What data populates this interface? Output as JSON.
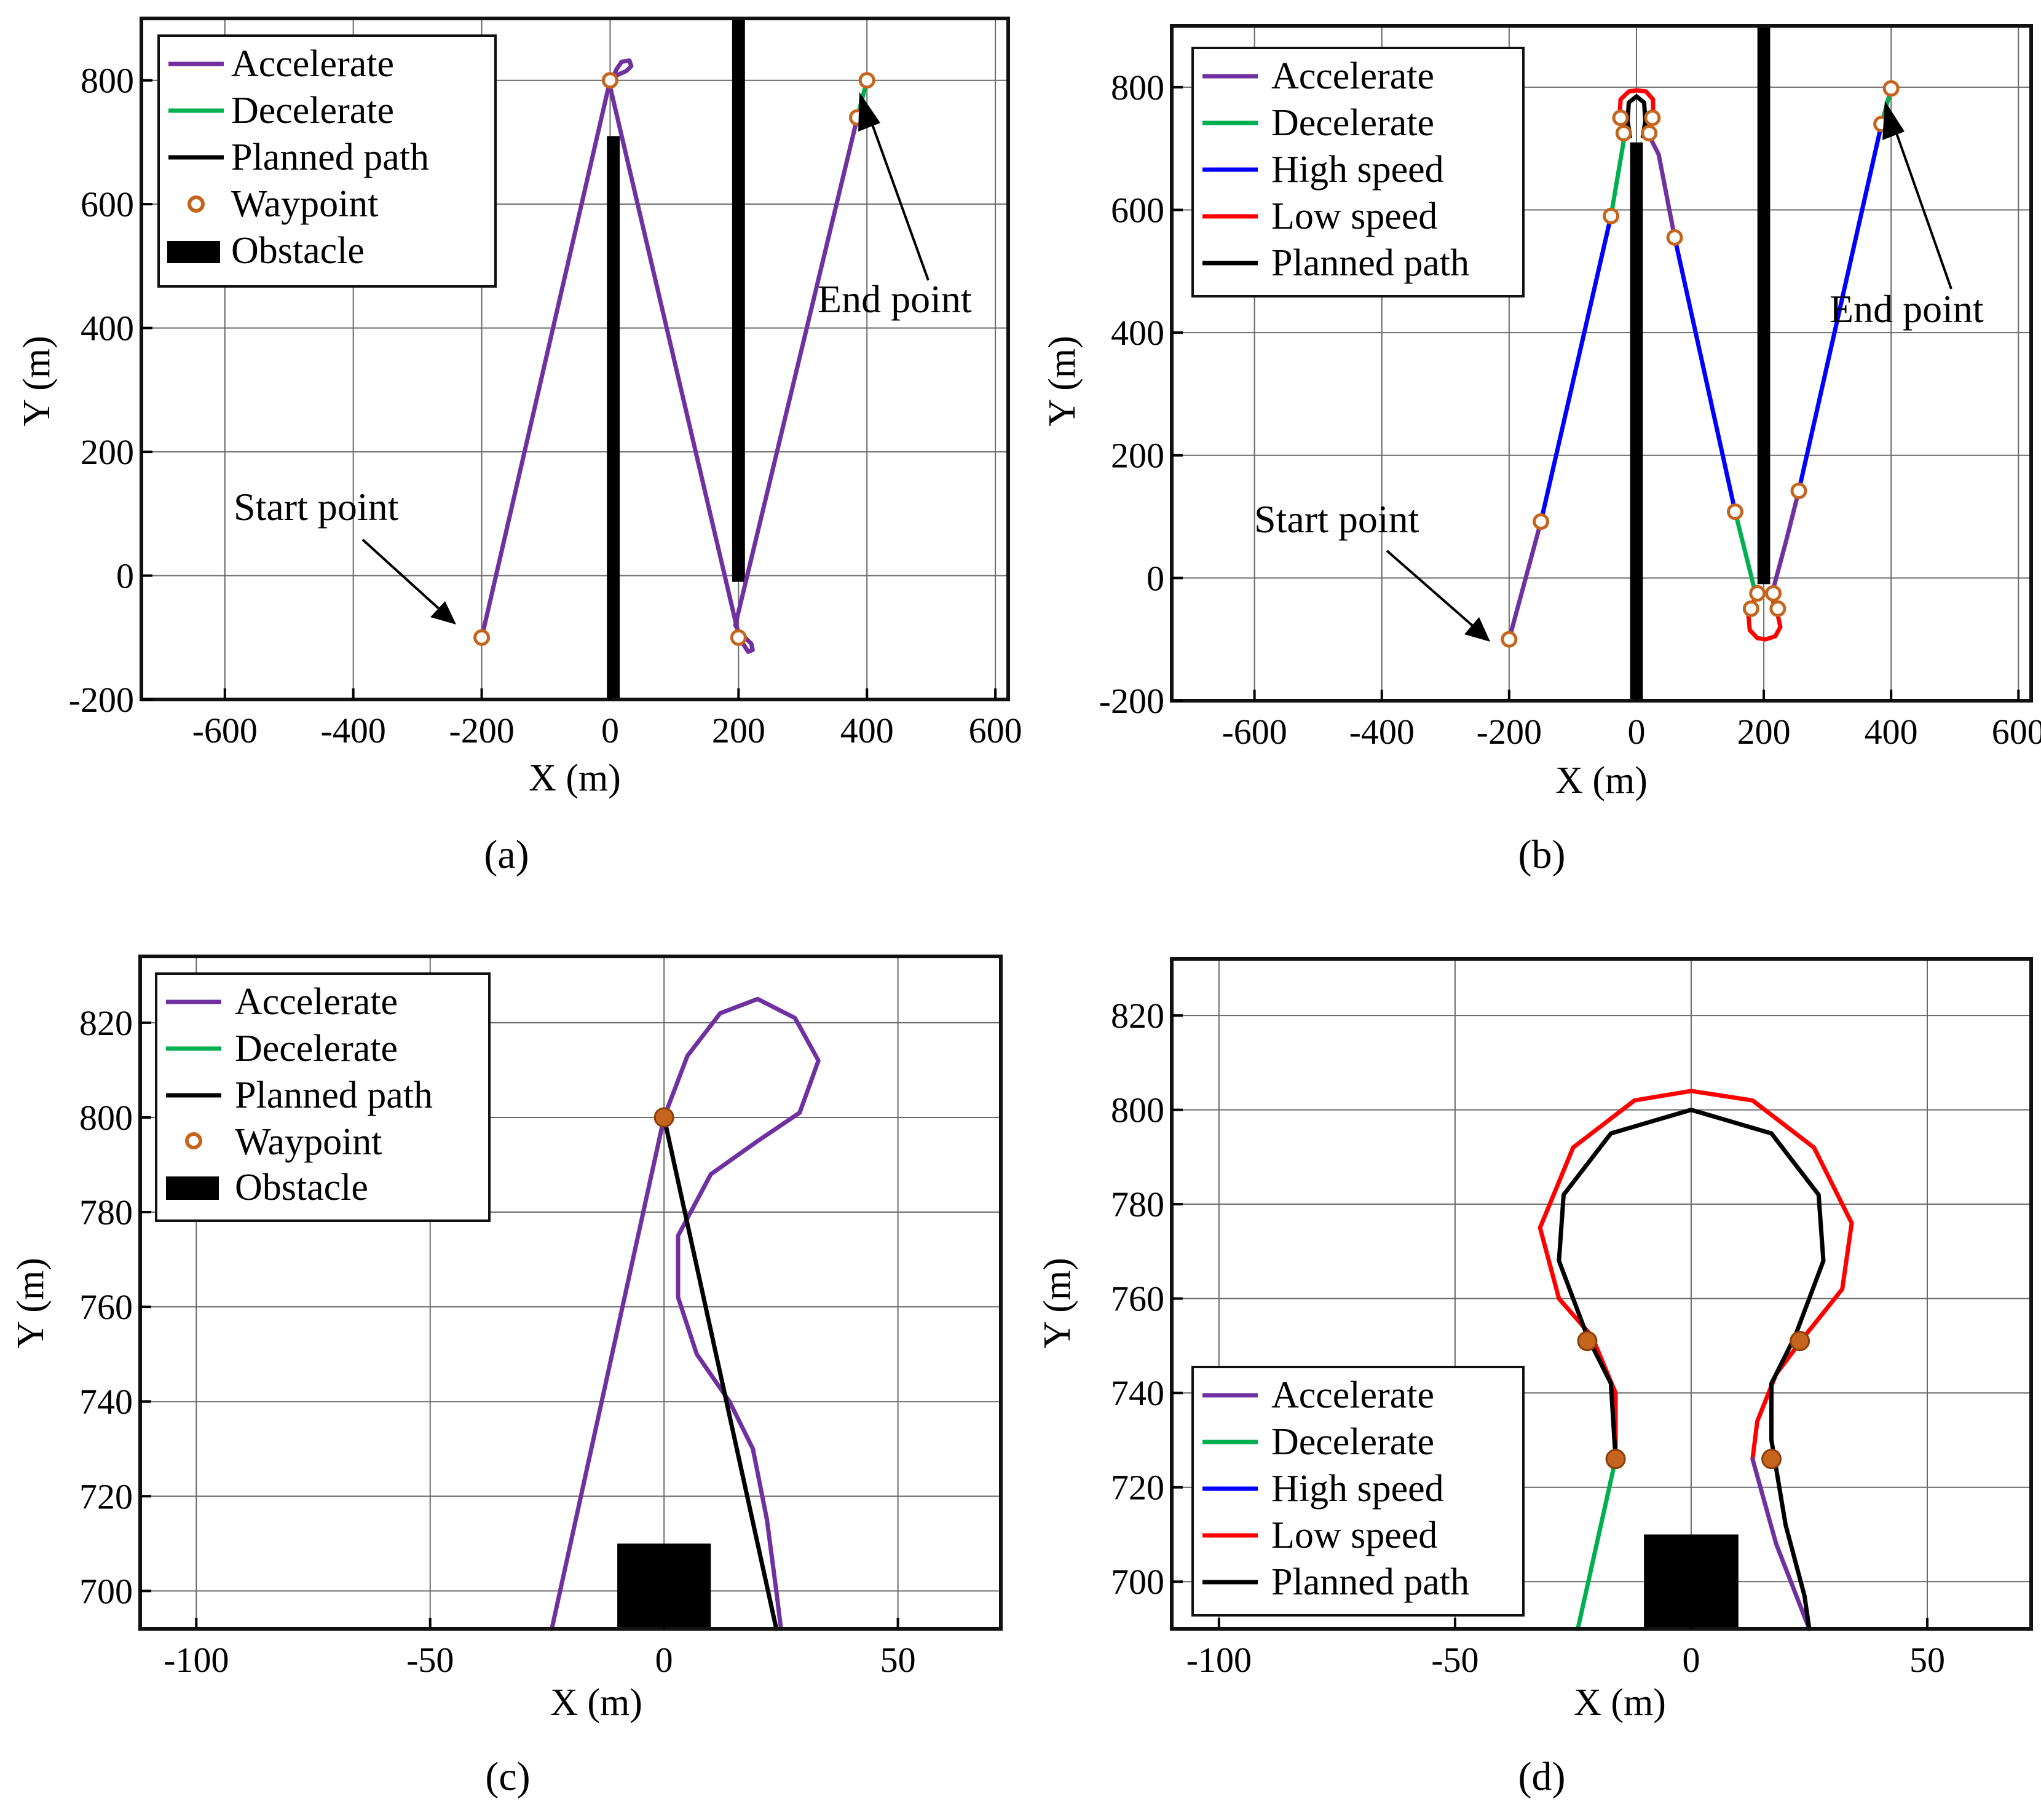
{
  "figure": {
    "colors": {
      "accelerate": "#7030a0",
      "decelerate": "#00b050",
      "high_speed": "#0000ff",
      "low_speed": "#ff0000",
      "planned": "#000000",
      "waypoint_fill": "#c5641c",
      "obstacle": "#000000"
    }
  },
  "chart_data": [
    {
      "id": "a",
      "type": "line",
      "panel_label": "(a)",
      "xlabel": "X (m)",
      "ylabel": "Y (m)",
      "xlim": [
        -730,
        620
      ],
      "ylim": [
        -200,
        900
      ],
      "xticks": [
        -600,
        -400,
        -200,
        0,
        200,
        400,
        600
      ],
      "yticks": [
        -200,
        0,
        200,
        400,
        600,
        800
      ],
      "xtick_labels": [
        "-600",
        "-400",
        "-200",
        "0",
        "200",
        "400",
        "600"
      ],
      "ytick_labels": [
        "-200",
        "0",
        "200",
        "400",
        "600",
        "800"
      ],
      "legend": [
        "Accelerate",
        "Decelerate",
        "Planned path",
        "Waypoint",
        "Obstacle"
      ],
      "annotations": [
        {
          "text": "Start point",
          "x": -200,
          "y": -100
        },
        {
          "text": "End point",
          "x": 400,
          "y": 800
        }
      ],
      "obstacles": [
        {
          "x0": -5,
          "x1": 15,
          "y0": -200,
          "y1": 710
        },
        {
          "x0": 190,
          "x1": 210,
          "y0": -10,
          "y1": 900
        }
      ],
      "waypoints": [
        [
          -200,
          -100
        ],
        [
          0,
          800
        ],
        [
          200,
          -100
        ],
        [
          385,
          740
        ],
        [
          400,
          800
        ]
      ],
      "series": [
        {
          "name": "Accelerate",
          "color_key": "accelerate",
          "points": [
            [
              -200,
              -100
            ],
            [
              0,
              800
            ],
            [
              10,
              808
            ],
            [
              25,
              815
            ],
            [
              33,
              823
            ],
            [
              30,
              832
            ],
            [
              18,
              830
            ],
            [
              10,
              818
            ],
            [
              5,
              805
            ],
            [
              0,
              790
            ],
            [
              200,
              -95
            ],
            [
              210,
              -100
            ],
            [
              220,
              -110
            ],
            [
              222,
              -120
            ],
            [
              215,
              -123
            ],
            [
              207,
              -110
            ],
            [
              203,
              -95
            ],
            [
              195,
              -80
            ],
            [
              385,
              740
            ]
          ]
        },
        {
          "name": "Decelerate",
          "color_key": "decelerate",
          "points": [
            [
              385,
              740
            ],
            [
              400,
              800
            ]
          ]
        },
        {
          "name": "Planned path",
          "color_key": "planned",
          "points": []
        }
      ]
    },
    {
      "id": "b",
      "type": "line",
      "panel_label": "(b)",
      "xlabel": "X (m)",
      "ylabel": "Y (m)",
      "xlim": [
        -730,
        620
      ],
      "ylim": [
        -200,
        900
      ],
      "xticks": [
        -600,
        -400,
        -200,
        0,
        200,
        400,
        600
      ],
      "yticks": [
        -200,
        0,
        200,
        400,
        600,
        800
      ],
      "xtick_labels": [
        "-600",
        "-400",
        "-200",
        "0",
        "200",
        "400",
        "600"
      ],
      "ytick_labels": [
        "-200",
        "0",
        "200",
        "400",
        "600",
        "800"
      ],
      "legend": [
        "Accelerate",
        "Decelerate",
        "High speed",
        "Low speed",
        "Planned path"
      ],
      "annotations": [
        {
          "text": "Start point",
          "x": -200,
          "y": -100
        },
        {
          "text": "End point",
          "x": 400,
          "y": 800
        }
      ],
      "obstacles": [
        {
          "x0": -10,
          "x1": 10,
          "y0": -200,
          "y1": 710
        },
        {
          "x0": 190,
          "x1": 210,
          "y0": -10,
          "y1": 900
        }
      ],
      "waypoints": [
        [
          -200,
          -100
        ],
        [
          -150,
          92
        ],
        [
          -40,
          590
        ],
        [
          -20,
          725
        ],
        [
          -25,
          750
        ],
        [
          20,
          725
        ],
        [
          25,
          750
        ],
        [
          60,
          555
        ],
        [
          155,
          108
        ],
        [
          190,
          -25
        ],
        [
          180,
          -50
        ],
        [
          215,
          -25
        ],
        [
          222,
          -50
        ],
        [
          255,
          142
        ],
        [
          385,
          740
        ],
        [
          400,
          798
        ]
      ],
      "series": [
        {
          "name": "Accelerate",
          "color_key": "accelerate",
          "points": [
            [
              -200,
              -100
            ],
            [
              -150,
              92
            ]
          ]
        },
        {
          "name": "High speed",
          "color_key": "high_speed",
          "points": [
            [
              -150,
              92
            ],
            [
              -40,
              590
            ]
          ]
        },
        {
          "name": "Decelerate",
          "color_key": "decelerate",
          "points": [
            [
              -40,
              590
            ],
            [
              -18,
              725
            ]
          ]
        },
        {
          "name": "Low speed",
          "color_key": "low_speed",
          "points": [
            [
              -18,
              725
            ],
            [
              -20,
              745
            ],
            [
              -26,
              760
            ],
            [
              -25,
              780
            ],
            [
              -12,
              793
            ],
            [
              0,
              795
            ],
            [
              15,
              793
            ],
            [
              26,
              780
            ],
            [
              26,
              760
            ],
            [
              20,
              745
            ],
            [
              18,
              725
            ]
          ]
        },
        {
          "name": "Accelerate",
          "color_key": "accelerate",
          "points": [
            [
              18,
              725
            ],
            [
              35,
              690
            ],
            [
              60,
              555
            ]
          ]
        },
        {
          "name": "High speed",
          "color_key": "high_speed",
          "points": [
            [
              60,
              555
            ],
            [
              155,
              108
            ]
          ]
        },
        {
          "name": "Decelerate",
          "color_key": "decelerate",
          "points": [
            [
              155,
              108
            ],
            [
              187,
              -25
            ]
          ]
        },
        {
          "name": "Low speed",
          "color_key": "low_speed",
          "points": [
            [
              187,
              -25
            ],
            [
              183,
              -45
            ],
            [
              176,
              -62
            ],
            [
              178,
              -85
            ],
            [
              190,
              -98
            ],
            [
              203,
              -100
            ],
            [
              218,
              -95
            ],
            [
              226,
              -80
            ],
            [
              222,
              -60
            ],
            [
              216,
              -45
            ],
            [
              213,
              -25
            ]
          ]
        },
        {
          "name": "Accelerate",
          "color_key": "accelerate",
          "points": [
            [
              213,
              -25
            ],
            [
              235,
              60
            ],
            [
              255,
              142
            ]
          ]
        },
        {
          "name": "High speed",
          "color_key": "high_speed",
          "points": [
            [
              255,
              142
            ],
            [
              385,
              740
            ]
          ]
        },
        {
          "name": "Decelerate",
          "color_key": "decelerate",
          "points": [
            [
              385,
              740
            ],
            [
              400,
              798
            ]
          ]
        },
        {
          "name": "Planned path",
          "color_key": "planned",
          "points": [
            [
              -10,
              720
            ],
            [
              -14,
              745
            ],
            [
              -12,
              775
            ],
            [
              0,
              785
            ],
            [
              12,
              775
            ],
            [
              14,
              745
            ],
            [
              10,
              720
            ]
          ]
        }
      ]
    },
    {
      "id": "c",
      "type": "line",
      "panel_label": "(c)",
      "xlabel": "X (m)",
      "ylabel": "Y (m)",
      "xlim": [
        -112,
        72
      ],
      "ylim": [
        692,
        834
      ],
      "xticks": [
        -100,
        -50,
        0,
        50
      ],
      "yticks": [
        700,
        720,
        740,
        760,
        780,
        800,
        820
      ],
      "xtick_labels": [
        "-100",
        "-50",
        "0",
        "50"
      ],
      "ytick_labels": [
        "700",
        "720",
        "740",
        "760",
        "780",
        "800",
        "820"
      ],
      "legend": [
        "Accelerate",
        "Decelerate",
        "Planned path",
        "Waypoint",
        "Obstacle"
      ],
      "annotations": [],
      "obstacles": [
        {
          "x0": -10,
          "x1": 10,
          "y0": 692,
          "y1": 710
        }
      ],
      "waypoints": [
        [
          0,
          800
        ]
      ],
      "series": [
        {
          "name": "Accelerate",
          "color_key": "accelerate",
          "points": [
            [
              -24,
              692
            ],
            [
              -12,
              746
            ],
            [
              0,
              800
            ],
            [
              5,
              813
            ],
            [
              12,
              822
            ],
            [
              20,
              825
            ],
            [
              28,
              821
            ],
            [
              33,
              812
            ],
            [
              29,
              801
            ],
            [
              20,
              795
            ],
            [
              10,
              788
            ],
            [
              3,
              775
            ],
            [
              3,
              762
            ],
            [
              7,
              750
            ],
            [
              14,
              740
            ],
            [
              19,
              730
            ],
            [
              22,
              715
            ],
            [
              24,
              700
            ],
            [
              25,
              692
            ]
          ]
        },
        {
          "name": "Planned path",
          "color_key": "planned",
          "points": [
            [
              0,
              800
            ],
            [
              24,
              692
            ]
          ]
        }
      ]
    },
    {
      "id": "d",
      "type": "line",
      "panel_label": "(d)",
      "xlabel": "X (m)",
      "ylabel": "Y (m)",
      "xlim": [
        -110,
        72
      ],
      "ylim": [
        690,
        832
      ],
      "xticks": [
        -100,
        -50,
        0,
        50
      ],
      "yticks": [
        700,
        720,
        740,
        760,
        780,
        800,
        820
      ],
      "xtick_labels": [
        "-100",
        "-50",
        "0",
        "50"
      ],
      "ytick_labels": [
        "700",
        "720",
        "740",
        "760",
        "780",
        "800",
        "820"
      ],
      "legend": [
        "Accelerate",
        "Decelerate",
        "High speed",
        "Low speed",
        "Planned path"
      ],
      "annotations": [],
      "obstacles": [
        {
          "x0": -10,
          "x1": 10,
          "y0": 690,
          "y1": 710
        }
      ],
      "waypoints": [
        [
          -22,
          751
        ],
        [
          -16,
          726
        ],
        [
          23,
          751
        ],
        [
          17,
          726
        ]
      ],
      "series": [
        {
          "name": "Decelerate",
          "color_key": "decelerate",
          "points": [
            [
              -24,
              690
            ],
            [
              -16,
              726
            ]
          ]
        },
        {
          "name": "Low speed",
          "color_key": "low_speed",
          "points": [
            [
              -16,
              726
            ],
            [
              -16,
              740
            ],
            [
              -21,
              752
            ],
            [
              -28,
              760
            ],
            [
              -32,
              775
            ],
            [
              -25,
              792
            ],
            [
              -12,
              802
            ],
            [
              0,
              804
            ],
            [
              13,
              802
            ],
            [
              26,
              792
            ],
            [
              34,
              776
            ],
            [
              32,
              762
            ],
            [
              24,
              752
            ],
            [
              18,
              744
            ],
            [
              14,
              734
            ],
            [
              13,
              726
            ]
          ]
        },
        {
          "name": "Accelerate",
          "color_key": "accelerate",
          "points": [
            [
              13,
              726
            ],
            [
              18,
              708
            ],
            [
              25,
              690
            ]
          ]
        },
        {
          "name": "Planned path",
          "color_key": "planned",
          "points": [
            [
              -16,
              726
            ],
            [
              -17,
              742
            ],
            [
              -22,
              752
            ],
            [
              -28,
              768
            ],
            [
              -27,
              782
            ],
            [
              -17,
              795
            ],
            [
              0,
              800
            ],
            [
              17,
              795
            ],
            [
              27,
              782
            ],
            [
              28,
              768
            ],
            [
              22,
              752
            ],
            [
              17,
              742
            ],
            [
              17,
              730
            ],
            [
              20,
              712
            ],
            [
              24,
              697
            ],
            [
              25,
              690
            ]
          ]
        }
      ]
    }
  ]
}
